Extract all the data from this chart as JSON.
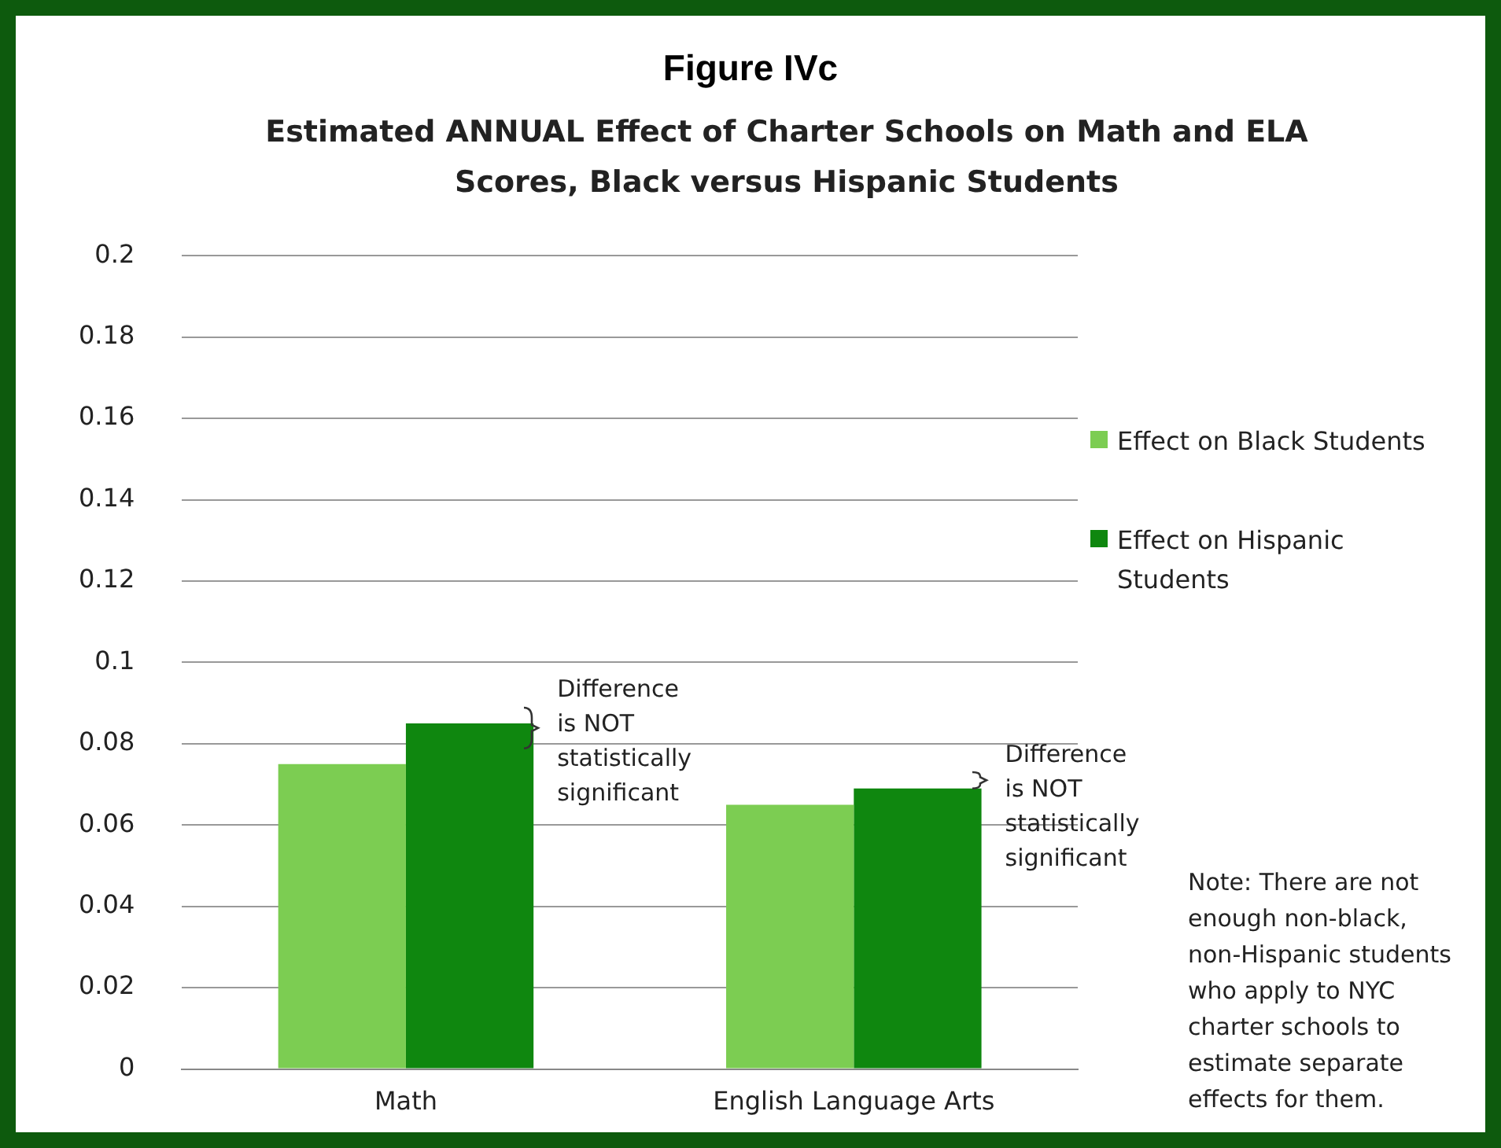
{
  "chart_data": {
    "type": "bar",
    "title": "Figure IVc",
    "subtitle": "Estimated ANNUAL Effect of Charter Schools on Math and ELA Scores,  Black versus Hispanic Students",
    "categories": [
      "Math",
      "English Language Arts"
    ],
    "series": [
      {
        "name": "Effect on Black Students",
        "color": "#7ccd52",
        "values": [
          0.075,
          0.065
        ]
      },
      {
        "name": "Effect on Hispanic Students",
        "color": "#0f870f",
        "values": [
          0.085,
          0.069
        ]
      }
    ],
    "ylim": [
      0,
      0.2
    ],
    "yticks": [
      0,
      0.02,
      0.04,
      0.06,
      0.08,
      0.1,
      0.12,
      0.14,
      0.16,
      0.18,
      0.2
    ],
    "grid": "y",
    "legend": "right",
    "annotations": [
      "Difference is NOT statistically significant",
      "Difference is NOT statistically significant",
      "Note: There are not enough non-black, non-Hispanic students who apply to NYC charter schools to estimate separate effects for them."
    ]
  }
}
